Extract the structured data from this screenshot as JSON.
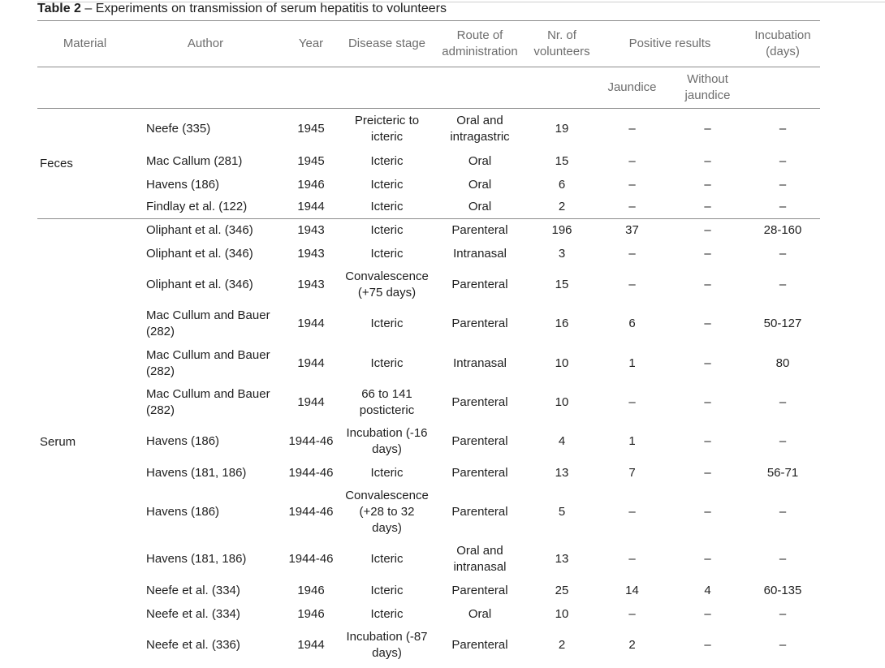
{
  "caption": {
    "label": "Table 2",
    "text": " – Experiments on transmission of serum hepatitis to volunteers"
  },
  "headers": {
    "material": "Material",
    "author": "Author",
    "year": "Year",
    "disease_stage": "Disease stage",
    "route": "Route of administration",
    "volunteers": "Nr. of volunteers",
    "positive_results": "Positive results",
    "incubation": "Incubation (days)",
    "jaundice": "Jaundice",
    "without_jaundice": "Without jaundice"
  },
  "groups": [
    {
      "material": "Feces",
      "rows": [
        {
          "author": "Neefe (335)",
          "year": "1945",
          "stage": "Preicteric to icteric",
          "route": "Oral and intragastric",
          "volunteers": "19",
          "jaundice": "–",
          "without": "–",
          "incubation": "–"
        },
        {
          "author": "Mac Callum (281)",
          "year": "1945",
          "stage": "Icteric",
          "route": "Oral",
          "volunteers": "15",
          "jaundice": "–",
          "without": "–",
          "incubation": "–"
        },
        {
          "author": "Havens (186)",
          "year": "1946",
          "stage": "Icteric",
          "route": "Oral",
          "volunteers": "6",
          "jaundice": "–",
          "without": "–",
          "incubation": "–"
        },
        {
          "author": "Findlay et al. (122)",
          "year": "1944",
          "stage": "Icteric",
          "route": "Oral",
          "volunteers": "2",
          "jaundice": "–",
          "without": "–",
          "incubation": "–"
        }
      ]
    },
    {
      "material": "Serum",
      "rows": [
        {
          "author": "Oliphant et al. (346)",
          "year": "1943",
          "stage": "Icteric",
          "route": "Parenteral",
          "volunteers": "196",
          "jaundice": "37",
          "without": "–",
          "incubation": "28-160"
        },
        {
          "author": "Oliphant et al. (346)",
          "year": "1943",
          "stage": "Icteric",
          "route": "Intranasal",
          "volunteers": "3",
          "jaundice": "–",
          "without": "–",
          "incubation": "–"
        },
        {
          "author": "Oliphant et al. (346)",
          "year": "1943",
          "stage": "Convalescence (+75 days)",
          "route": "Parenteral",
          "volunteers": "15",
          "jaundice": "–",
          "without": "–",
          "incubation": "–"
        },
        {
          "author": "Mac Cullum and Bauer (282)",
          "year": "1944",
          "stage": "Icteric",
          "route": "Parenteral",
          "volunteers": "16",
          "jaundice": "6",
          "without": "–",
          "incubation": "50-127"
        },
        {
          "author": "Mac Cullum and Bauer (282)",
          "year": "1944",
          "stage": "Icteric",
          "route": "Intranasal",
          "volunteers": "10",
          "jaundice": "1",
          "without": "–",
          "incubation": "80"
        },
        {
          "author": "Mac Cullum and Bauer (282)",
          "year": "1944",
          "stage": "66 to 141 posticteric",
          "route": "Parenteral",
          "volunteers": "10",
          "jaundice": "–",
          "without": "–",
          "incubation": "–"
        },
        {
          "author": "Havens (186)",
          "year": "1944-46",
          "stage": "Incubation (-16 days)",
          "route": "Parenteral",
          "volunteers": "4",
          "jaundice": "1",
          "without": "–",
          "incubation": "–"
        },
        {
          "author": "Havens (181, 186)",
          "year": "1944-46",
          "stage": "Icteric",
          "route": "Parenteral",
          "volunteers": "13",
          "jaundice": "7",
          "without": "–",
          "incubation": "56-71"
        },
        {
          "author": "Havens (186)",
          "year": "1944-46",
          "stage": "Convalescence (+28 to 32 days)",
          "route": "Parenteral",
          "volunteers": "5",
          "jaundice": "–",
          "without": "–",
          "incubation": "–"
        },
        {
          "author": "Havens (181, 186)",
          "year": "1944-46",
          "stage": "Icteric",
          "route": "Oral and intranasal",
          "volunteers": "13",
          "jaundice": "–",
          "without": "–",
          "incubation": "–"
        },
        {
          "author": "Neefe et al. (334)",
          "year": "1946",
          "stage": "Icteric",
          "route": "Parenteral",
          "volunteers": "25",
          "jaundice": "14",
          "without": "4",
          "incubation": "60-135"
        },
        {
          "author": "Neefe et al. (334)",
          "year": "1946",
          "stage": "Icteric",
          "route": "Oral",
          "volunteers": "10",
          "jaundice": "–",
          "without": "–",
          "incubation": "–"
        },
        {
          "author": "Neefe et al. (336)",
          "year": "1944",
          "stage": "Incubation (-87 days)",
          "route": "Parenteral",
          "volunteers": "2",
          "jaundice": "2",
          "without": "–",
          "incubation": "–"
        }
      ]
    }
  ]
}
